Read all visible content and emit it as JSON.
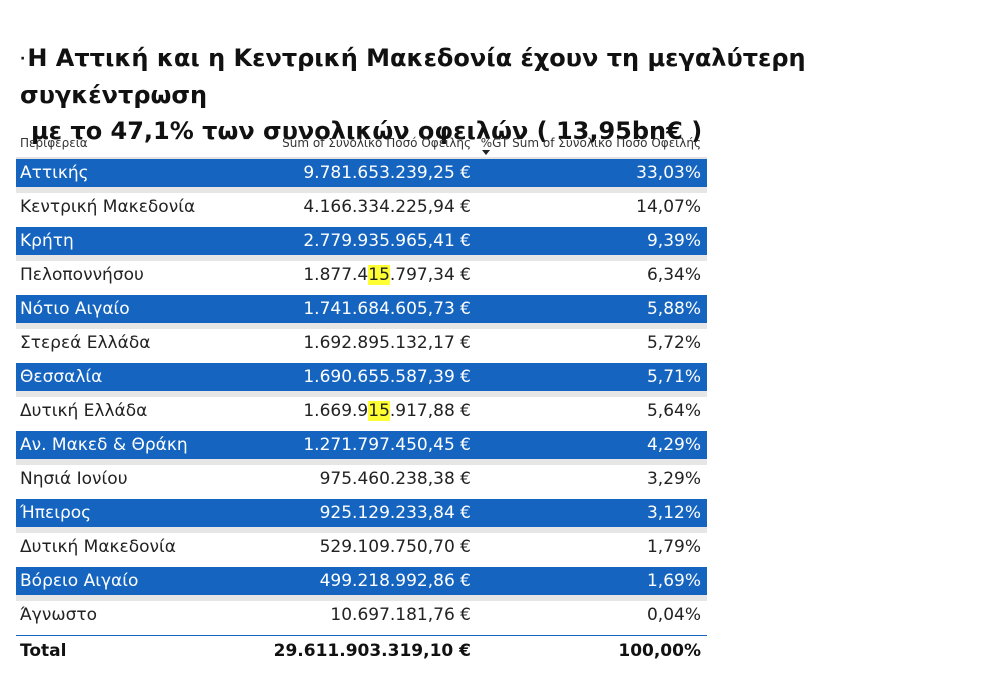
{
  "title": {
    "bullet": "·",
    "line1": "Η Αττική και η Κεντρική Μακεδονία  έχουν τη μεγαλύτερη συγκέντρωση",
    "line2": "με το 47,1% των συνολικών οφειλών ( 13,95bn€ )"
  },
  "table": {
    "headers": {
      "region": "Περιφέρεια",
      "sum": "Sum of Συνολικό Ποσό Οφειλής",
      "pct": "%GT Sum of Συνολικό Ποσό Οφειλής"
    },
    "sort_indicator": "descending",
    "highlight_color": "#ffff33",
    "band_color": "#1565c0",
    "rows": [
      {
        "region": "Αττικής",
        "sum_pre": "9.781.653.239,25 €",
        "sum_hl": "",
        "sum_post": "",
        "pct": "33,03%"
      },
      {
        "region": "Κεντρική Μακεδονία",
        "sum_pre": "4.166.334.225,94 €",
        "sum_hl": "",
        "sum_post": "",
        "pct": "14,07%"
      },
      {
        "region": "Κρήτη",
        "sum_pre": "2.779.935.965,41 €",
        "sum_hl": "",
        "sum_post": "",
        "pct": "9,39%"
      },
      {
        "region": "Πελοποννήσου",
        "sum_pre": "1.877.4",
        "sum_hl": "15",
        "sum_post": ".797,34 €",
        "pct": "6,34%"
      },
      {
        "region": "Νότιο Αιγαίο",
        "sum_pre": "1.741.684.605,73 €",
        "sum_hl": "",
        "sum_post": "",
        "pct": "5,88%"
      },
      {
        "region": "Στερεά Ελλάδα",
        "sum_pre": "1.692.895.132,17 €",
        "sum_hl": "",
        "sum_post": "",
        "pct": "5,72%"
      },
      {
        "region": "Θεσσαλία",
        "sum_pre": "1.690.655.587,39 €",
        "sum_hl": "",
        "sum_post": "",
        "pct": "5,71%"
      },
      {
        "region": "Δυτική Ελλάδα",
        "sum_pre": "1.669.9",
        "sum_hl": "15",
        "sum_post": ".917,88 €",
        "pct": "5,64%"
      },
      {
        "region": "Αν. Μακεδ & Θράκη",
        "sum_pre": "1.271.797.450,45 €",
        "sum_hl": "",
        "sum_post": "",
        "pct": "4,29%"
      },
      {
        "region": "Νησιά Ιονίου",
        "sum_pre": "975.460.238,38 €",
        "sum_hl": "",
        "sum_post": "",
        "pct": "3,29%"
      },
      {
        "region": "Ήπειρος",
        "sum_pre": "925.129.233,84 €",
        "sum_hl": "",
        "sum_post": "",
        "pct": "3,12%"
      },
      {
        "region": "Δυτική Μακεδονία",
        "sum_pre": "529.109.750,70 €",
        "sum_hl": "",
        "sum_post": "",
        "pct": "1,79%"
      },
      {
        "region": "Βόρειο Αιγαίο",
        "sum_pre": "499.218.992,86 €",
        "sum_hl": "",
        "sum_post": "",
        "pct": "1,69%"
      },
      {
        "region": "Άγνωστο",
        "sum_pre": "10.697.181,76 €",
        "sum_hl": "",
        "sum_post": "",
        "pct": "0,04%"
      }
    ],
    "total": {
      "label": "Total",
      "sum": "29.611.903.319,10 €",
      "pct": "100,00%"
    }
  }
}
